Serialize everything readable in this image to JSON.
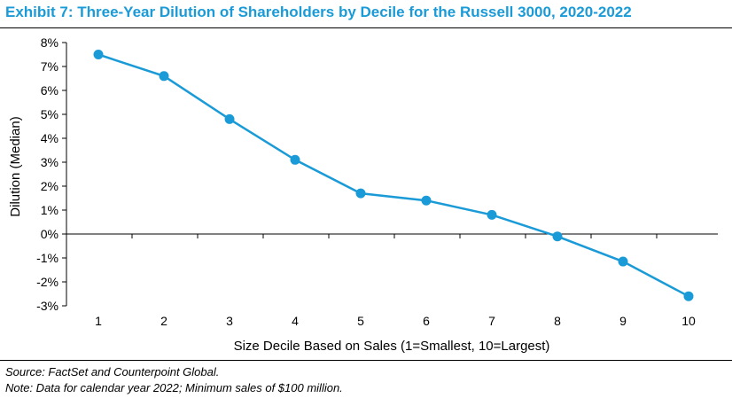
{
  "header": {
    "title": "Exhibit 7: Three-Year Dilution of Shareholders by Decile for the Russell 3000, 2020-2022"
  },
  "footnotes": {
    "source": "Source: FactSet and Counterpoint Global.",
    "note": "Note: Data for calendar year 2022; Minimum sales of $100 million."
  },
  "colors": {
    "title": "#1a9bd7",
    "series": "#1a9bd7"
  },
  "chart_data": {
    "type": "line",
    "title": "",
    "xlabel": "Size Decile Based on Sales (1=Smallest, 10=Largest)",
    "ylabel": "Dilution (Median)",
    "x": [
      1,
      2,
      3,
      4,
      5,
      6,
      7,
      8,
      9,
      10
    ],
    "series": [
      {
        "values": [
          7.5,
          6.6,
          4.8,
          3.1,
          1.7,
          1.4,
          0.8,
          -0.1,
          -1.15,
          -2.6
        ]
      }
    ],
    "ylim": [
      -3,
      8
    ],
    "y_ticks": [
      8,
      7,
      6,
      5,
      4,
      3,
      2,
      1,
      0,
      -1,
      -2,
      -3
    ],
    "y_tick_labels": [
      "8%",
      "7%",
      "6%",
      "5%",
      "4%",
      "3%",
      "2%",
      "1%",
      "0%",
      "-1%",
      "-2%",
      "-3%"
    ],
    "x_tick_labels": [
      "1",
      "2",
      "3",
      "4",
      "5",
      "6",
      "7",
      "8",
      "9",
      "10"
    ],
    "grid": false,
    "legend": "none",
    "markers": true
  }
}
